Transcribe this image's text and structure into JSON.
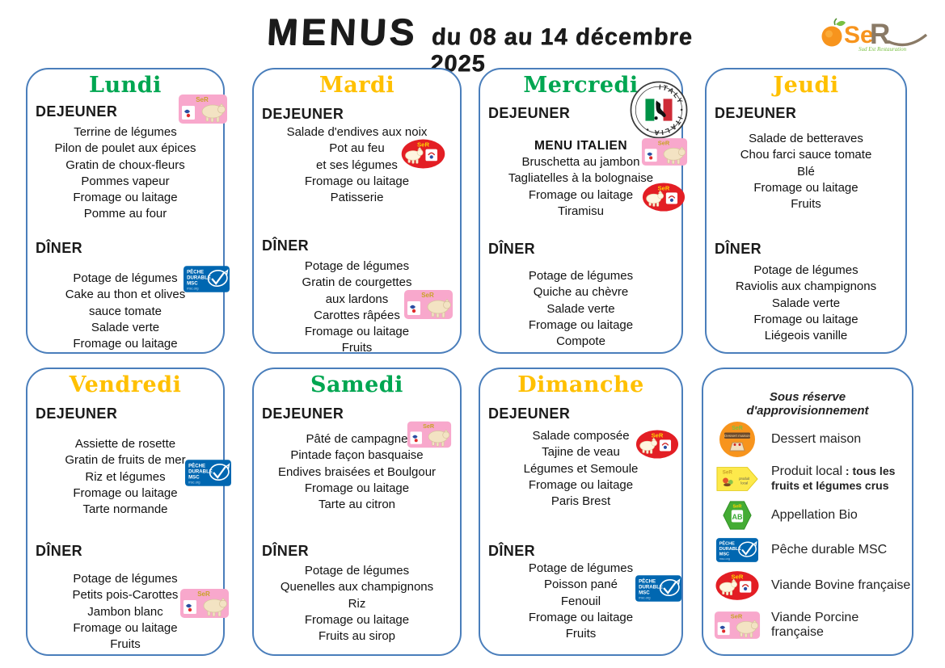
{
  "header": {
    "title": "MENUS",
    "subtitle": "du 08 au 14 décembre 2025"
  },
  "logo": {
    "se": "Se",
    "r": "R",
    "tagline": "Sud Est Restauration"
  },
  "labels": {
    "lunch": "DEJEUNER",
    "dinner": "DÎNER"
  },
  "colors": {
    "day_green": "#00A651",
    "day_yellow": "#FFC000",
    "card_border": "#4A7EBB",
    "beef_red": "#E31E24",
    "pork_pink": "#F8A8CC",
    "msc_blue": "#0067B1",
    "bio_green": "#44AC34",
    "dessert_orange": "#F7941D",
    "local_yellow": "#FDE94B"
  },
  "icon_text": {
    "ser": "SeR",
    "msc_line1": "PÊCHE",
    "msc_line2": "DURABLE",
    "msc_line3": "MSC",
    "msc_url": "msc.org",
    "italy_ring": "ITALY • ITALIA •",
    "dessert_band": "Dessert maison",
    "local_line1": "produit",
    "local_line2": "local",
    "bio_ab": "AB"
  },
  "days": [
    {
      "name": "Lundi",
      "color": "#00A651",
      "lunch": {
        "items": [
          "Terrine de légumes",
          "Pilon de poulet aux épices",
          "Gratin de choux-fleurs",
          "Pommes vapeur",
          "Fromage ou laitage",
          "Pomme au four"
        ]
      },
      "dinner": {
        "items": [
          "Potage de légumes",
          "Cake au thon et olives",
          "sauce tomate",
          "Salade verte",
          "Fromage ou laitage"
        ]
      },
      "badges": [
        {
          "icon": "pork-icon",
          "near": "DEJEUNER"
        },
        {
          "icon": "msc-icon",
          "near": "Potage de légumes"
        }
      ]
    },
    {
      "name": "Mardi",
      "color": "#FFC000",
      "lunch": {
        "items": [
          "Salade d'endives aux noix",
          "Pot au feu",
          "et ses légumes",
          "Fromage ou laitage",
          "Patisserie"
        ]
      },
      "dinner": {
        "items": [
          "Potage de légumes",
          "Gratin de courgettes",
          "aux lardons",
          "Carottes râpées",
          "Fromage ou laitage",
          "Fruits"
        ]
      },
      "badges": [
        {
          "icon": "beef-icon",
          "near": "Pot au feu"
        },
        {
          "icon": "pork-icon",
          "near": "aux lardons"
        }
      ]
    },
    {
      "name": "Mercredi",
      "color": "#00A651",
      "lunch": {
        "special": "MENU ITALIEN",
        "items": [
          "Bruschetta au jambon",
          "Tagliatelles à la bolognaise",
          "Fromage ou laitage",
          "Tiramisu"
        ]
      },
      "dinner": {
        "items": [
          "Potage de légumes",
          "Quiche au chèvre",
          "Salade verte",
          "Fromage ou laitage",
          "Compote"
        ]
      },
      "badges": [
        {
          "icon": "italy-stamp-icon",
          "near": "Mercredi"
        },
        {
          "icon": "pork-icon",
          "near": "Bruschetta au jambon"
        },
        {
          "icon": "beef-icon",
          "near": "Fromage ou laitage"
        }
      ]
    },
    {
      "name": "Jeudi",
      "color": "#FFC000",
      "lunch": {
        "items": [
          "Salade de betteraves",
          "Chou farci sauce tomate",
          "Blé",
          "Fromage ou laitage",
          "Fruits"
        ]
      },
      "dinner": {
        "items": [
          "Potage de légumes",
          "Raviolis aux champignons",
          "Salade verte",
          "Fromage ou laitage",
          "Liégeois vanille"
        ]
      },
      "badges": []
    },
    {
      "name": "Vendredi",
      "color": "#FFC000",
      "lunch": {
        "items": [
          "Assiette de rosette",
          "Gratin de fruits de mer",
          "Riz et légumes",
          "Fromage ou laitage",
          "Tarte normande"
        ]
      },
      "dinner": {
        "items": [
          "Potage de légumes",
          "Petits pois-Carottes",
          "Jambon blanc",
          "Fromage ou laitage",
          "Fruits"
        ]
      },
      "badges": [
        {
          "icon": "msc-icon",
          "near": "Riz et légumes"
        },
        {
          "icon": "pork-icon",
          "near": "Jambon blanc"
        }
      ]
    },
    {
      "name": "Samedi",
      "color": "#00A651",
      "lunch": {
        "items": [
          "Pâté de campagne",
          "Pintade façon basquaise",
          "Endives braisées et Boulgour",
          "Fromage ou laitage",
          "Tarte au citron"
        ]
      },
      "dinner": {
        "items": [
          "Potage de légumes",
          "Quenelles aux champignons",
          "Riz",
          "Fromage ou laitage",
          "Fruits au sirop"
        ]
      },
      "badges": [
        {
          "icon": "pork-icon",
          "near": "Pâté de campagne"
        }
      ]
    },
    {
      "name": "Dimanche",
      "color": "#FFC000",
      "lunch": {
        "items": [
          "Salade composée",
          "Tajine de veau",
          "Légumes et Semoule",
          "Fromage ou laitage",
          "Paris Brest"
        ]
      },
      "dinner": {
        "items": [
          "Potage de légumes",
          "Poisson pané",
          "Fenouil",
          "Fromage ou laitage",
          "Fruits"
        ]
      },
      "badges": [
        {
          "icon": "beef-icon",
          "near": "Tajine de veau"
        },
        {
          "icon": "msc-icon",
          "near": "Poisson pané"
        }
      ]
    }
  ],
  "legend": {
    "title": "Sous réserve d'approvisionnement",
    "items": [
      {
        "icon": "dessert-maison-icon",
        "label": "Dessert maison"
      },
      {
        "icon": "produit-local-icon",
        "label": "Produit local",
        "label_bold": " : tous les fruits et légumes crus"
      },
      {
        "icon": "bio-icon",
        "label": "Appellation Bio"
      },
      {
        "icon": "msc-icon",
        "label": "Pêche durable MSC"
      },
      {
        "icon": "beef-icon",
        "label": "Viande Bovine française"
      },
      {
        "icon": "pork-icon",
        "label": "Viande Porcine française"
      }
    ]
  }
}
